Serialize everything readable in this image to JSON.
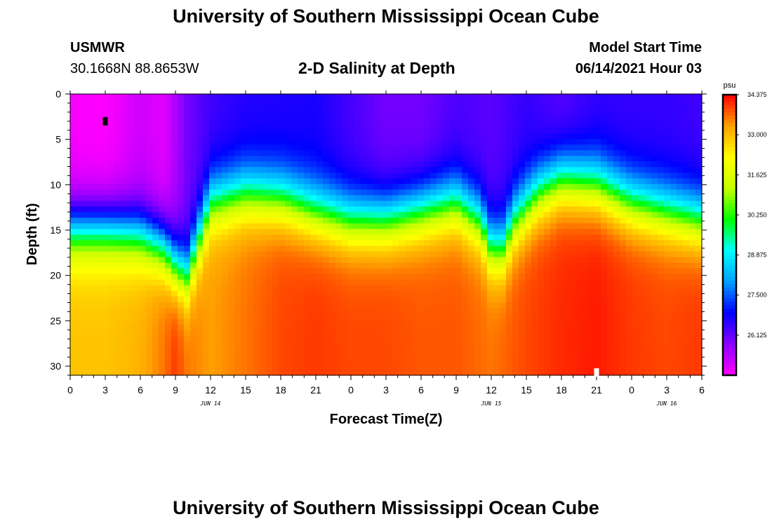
{
  "page": {
    "title_top": "University of Southern Mississippi Ocean Cube",
    "title_bottom": "University of Southern Mississippi Ocean Cube",
    "station": "USMWR",
    "coords": "30.1668N  88.8653W",
    "subtitle": "2-D Salinity at Depth",
    "model_label": "Model Start Time",
    "model_time": "06/14/2021 Hour 03"
  },
  "colors": {
    "ramp": [
      "#ff00ff",
      "#8c00ff",
      "#0000ff",
      "#00a0ff",
      "#00ffff",
      "#00ff00",
      "#c8ff00",
      "#ffff00",
      "#ffa000",
      "#ff0000"
    ]
  },
  "chart_data": {
    "type": "heatmap",
    "title": "2-D Salinity at Depth",
    "xlabel": "Forecast Time(Z)",
    "ylabel": "Depth (ft)",
    "xlim": [
      0,
      54
    ],
    "ylim": [
      31,
      0
    ],
    "x_ticks": [
      0,
      3,
      6,
      9,
      12,
      15,
      18,
      21,
      24,
      27,
      30,
      33,
      36,
      39,
      42,
      45,
      48,
      51,
      54
    ],
    "x_tick_labels": [
      "0",
      "3",
      "6",
      "9",
      "12",
      "15",
      "18",
      "21",
      "0",
      "3",
      "6",
      "9",
      "12",
      "15",
      "18",
      "21",
      "0",
      "3",
      "6"
    ],
    "y_ticks": [
      0,
      5,
      10,
      15,
      20,
      25,
      30
    ],
    "y_tick_labels": [
      "0",
      "5",
      "10",
      "15",
      "20",
      "25",
      "30"
    ],
    "date_labels": [
      {
        "x": 12,
        "text": "JUN 14"
      },
      {
        "x": 36,
        "text": "JUN 15"
      },
      {
        "x": 51,
        "text": "JUN 16"
      }
    ],
    "colorbar": {
      "unit": "psu",
      "min": 24.75,
      "max": 34.375,
      "tick_values": [
        34.375,
        33.0,
        31.625,
        30.25,
        28.875,
        27.5,
        26.125
      ],
      "tick_labels": [
        "34.375",
        "33.000",
        "31.625",
        "30.250",
        "28.875",
        "27.500",
        "26.125"
      ]
    },
    "halocline_depth_ft": [
      [
        0,
        15
      ],
      [
        3,
        15
      ],
      [
        6,
        15.5
      ],
      [
        8,
        17
      ],
      [
        9,
        19
      ],
      [
        10,
        20
      ],
      [
        11,
        16
      ],
      [
        12,
        12
      ],
      [
        15,
        11
      ],
      [
        18,
        11.5
      ],
      [
        21,
        13
      ],
      [
        24,
        14
      ],
      [
        27,
        14
      ],
      [
        30,
        13
      ],
      [
        33,
        12
      ],
      [
        35,
        14
      ],
      [
        36,
        17
      ],
      [
        37,
        17
      ],
      [
        38,
        14
      ],
      [
        40,
        11
      ],
      [
        42,
        9.5
      ],
      [
        45,
        10
      ],
      [
        48,
        12
      ],
      [
        51,
        13
      ],
      [
        54,
        14
      ]
    ],
    "surface_salinity_psu": [
      [
        0,
        24.8
      ],
      [
        3,
        24.75
      ],
      [
        6,
        25.2
      ],
      [
        8,
        25.0
      ],
      [
        10,
        26.0
      ],
      [
        12,
        26.4
      ],
      [
        15,
        26.6
      ],
      [
        21,
        26.7
      ],
      [
        27,
        26.0
      ],
      [
        30,
        26.0
      ],
      [
        33,
        26.3
      ],
      [
        36,
        26.2
      ],
      [
        39,
        26.5
      ],
      [
        42,
        26.2
      ],
      [
        45,
        26.5
      ],
      [
        48,
        26.5
      ],
      [
        51,
        26.5
      ],
      [
        54,
        26.4
      ]
    ],
    "deep_salinity_psu": [
      [
        0,
        32.9
      ],
      [
        3,
        32.9
      ],
      [
        6,
        33.1
      ],
      [
        8,
        33.6
      ],
      [
        9,
        34.0
      ],
      [
        10,
        33.6
      ],
      [
        12,
        33.3
      ],
      [
        15,
        33.6
      ],
      [
        18,
        33.9
      ],
      [
        21,
        34.0
      ],
      [
        24,
        33.9
      ],
      [
        27,
        33.9
      ],
      [
        30,
        33.8
      ],
      [
        33,
        33.8
      ],
      [
        36,
        33.6
      ],
      [
        39,
        33.9
      ],
      [
        42,
        34.1
      ],
      [
        45,
        34.2
      ],
      [
        48,
        34.0
      ],
      [
        51,
        33.9
      ],
      [
        54,
        34.0
      ]
    ],
    "markers": [
      {
        "x": 3,
        "depth": 3,
        "color": "#000000"
      },
      {
        "x": 45,
        "depth": 30.7,
        "color": "#ffffff"
      }
    ]
  }
}
